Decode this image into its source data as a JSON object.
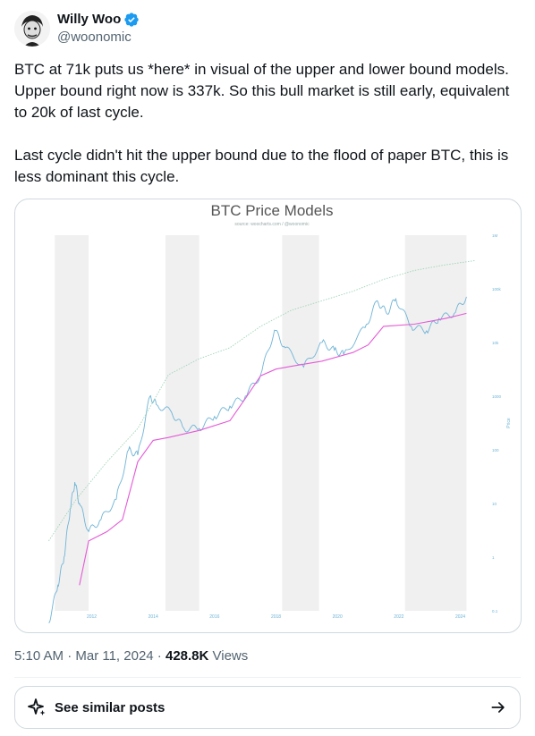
{
  "author": {
    "display_name": "Willy Woo",
    "handle": "@woonomic"
  },
  "tweet": {
    "text": "BTC at 71k puts us *here* in visual of the upper and lower bound models. Upper bound right now is 337k. So this bull market is still early, equivalent to 20k of last cycle.\n\nLast cycle didn't hit the upper bound due to the flood of paper BTC, this is less dominant this cycle."
  },
  "meta": {
    "time_date": "5:10 AM · Mar 11, 2024 · ",
    "views_count": "428.8K",
    "views_label": " Views"
  },
  "similar_posts": {
    "label": "See similar posts",
    "icon": "sparkle-icon",
    "arrow_icon": "arrow-right-icon"
  },
  "colors": {
    "verified": "#1d9bf0",
    "price_line": "#6fb4d6",
    "lower_bound": "#e45ad6",
    "upper_bound": "#9fd6b8",
    "bear_band": "#f0f0f0",
    "text_muted": "#536471"
  },
  "chart_data": {
    "type": "line",
    "title": "BTC Price Models",
    "subtitle": "source: woocharts.com / @woonomic",
    "ylabel": "Price",
    "yscale": "log",
    "x_ticks": [
      "2012",
      "2014",
      "2016",
      "2018",
      "2020",
      "2022",
      "2024"
    ],
    "y_ticks": [
      "0.1",
      "1",
      "10",
      "100",
      "1000",
      "10k",
      "100k",
      "1M"
    ],
    "ylim": [
      0.1,
      1000000
    ],
    "xlim": [
      2010.5,
      2024.8
    ],
    "shaded_years": [
      [
        2010.8,
        2011.9
      ],
      [
        2014.4,
        2015.5
      ],
      [
        2018.2,
        2019.4
      ],
      [
        2022.2,
        2024.2
      ]
    ],
    "series": [
      {
        "role": "price",
        "x": [
          2010.6,
          2010.9,
          2011.1,
          2011.3,
          2011.45,
          2011.6,
          2011.9,
          2012.3,
          2012.8,
          2013.2,
          2013.5,
          2013.9,
          2014.1,
          2014.6,
          2015.0,
          2015.5,
          2016.0,
          2016.5,
          2017.0,
          2017.5,
          2017.95,
          2018.3,
          2018.9,
          2019.5,
          2019.9,
          2020.2,
          2020.9,
          2021.3,
          2021.6,
          2021.9,
          2022.4,
          2022.9,
          2023.3,
          2023.8,
          2024.2
        ],
        "y": [
          0.06,
          0.3,
          1,
          8,
          25,
          10,
          3,
          5,
          12,
          100,
          80,
          1000,
          700,
          500,
          250,
          250,
          420,
          650,
          1000,
          2500,
          17000,
          8000,
          3500,
          10000,
          7200,
          6000,
          19000,
          60000,
          35000,
          65000,
          20000,
          16500,
          28000,
          35000,
          71000
        ]
      },
      {
        "role": "upper",
        "x": [
          2010.6,
          2011.5,
          2012.5,
          2013.5,
          2014.5,
          2015.5,
          2016.5,
          2017.5,
          2018.5,
          2019.5,
          2020.5,
          2021.5,
          2022.5,
          2023.5,
          2024.5
        ],
        "y": [
          2,
          12,
          60,
          250,
          2500,
          5000,
          8000,
          20000,
          40000,
          60000,
          90000,
          150000,
          220000,
          280000,
          337000
        ]
      },
      {
        "role": "lower",
        "x": [
          2011.6,
          2011.9,
          2012.5,
          2013.0,
          2013.5,
          2014.0,
          2014.5,
          2015.5,
          2016.5,
          2017.0,
          2017.5,
          2018.0,
          2018.5,
          2019.5,
          2020.5,
          2021.0,
          2021.5,
          2022.5,
          2023.5,
          2024.2
        ],
        "y": [
          0.3,
          2,
          3,
          5,
          60,
          150,
          170,
          230,
          350,
          900,
          2400,
          3200,
          3600,
          4500,
          6500,
          9000,
          20000,
          22000,
          28000,
          35000
        ]
      }
    ]
  }
}
